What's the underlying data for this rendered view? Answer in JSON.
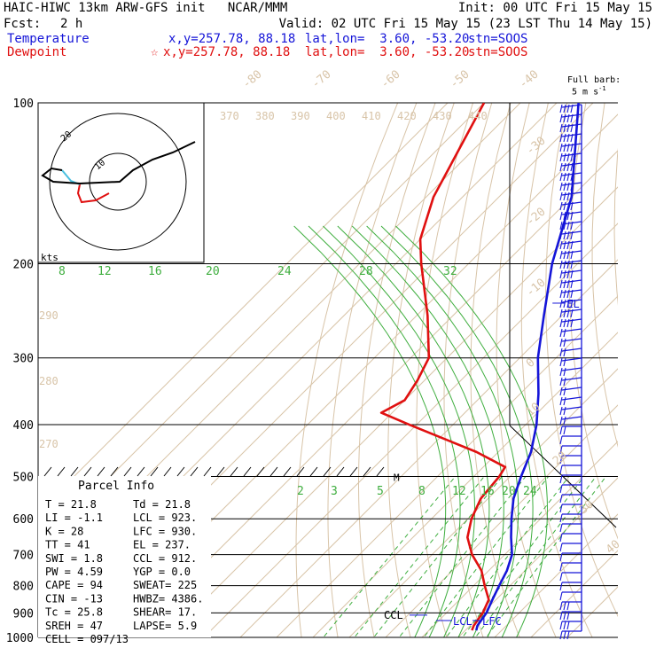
{
  "header": {
    "title": "HAIC-HIWC 13km ARW-GFS init   NCAR/MMM",
    "init": "Init: 00 UTC Fri 15 May 15",
    "fcst_label": "Fcst:",
    "fcst_value": "2 h",
    "valid": "Valid: 02 UTC Fri 15 May 15 (23 LST Thu 14 May 15)",
    "temperature_line": {
      "name": "Temperature",
      "xy": "x,y=257.78, 88.18",
      "latlon": "lat,lon=  3.60, -53.20",
      "stn": "stn=SOOS",
      "color": "#1515d8"
    },
    "dewpoint_line": {
      "name": "Dewpoint",
      "xy": "x,y=257.78, 88.18",
      "latlon": "lat,lon=  3.60, -53.20",
      "stn": "stn=SOOS",
      "color": "#e01010"
    }
  },
  "barb_legend": {
    "line1": "Full barb:",
    "line2": "5 m s",
    "sup": "-1"
  },
  "hodograph": {
    "units": "kts",
    "ring_labels": [
      "10",
      "20"
    ]
  },
  "parcel_info": {
    "title": "Parcel Info",
    "rows": [
      [
        "T  =    21.8",
        "Td =  21.8"
      ],
      [
        "LI =    -1.1",
        "LCL =  923."
      ],
      [
        "K  =      28",
        "LFC =  930."
      ],
      [
        "TT =      41",
        "EL  =  237."
      ],
      [
        "SWI =    1.8",
        "CCL =  912."
      ],
      [
        "PW =    4.59",
        "YGP =   0.0"
      ],
      [
        "CAPE =    94",
        "SWEAT=  225"
      ],
      [
        "CIN =    -13",
        "HWBZ= 4386."
      ],
      [
        "Tc =    25.8",
        "SHEAR=  17."
      ],
      [
        "SREH =    47",
        "LAPSE=  5.9"
      ],
      [
        "CELL = 097/13",
        ""
      ]
    ]
  },
  "level_labels": {
    "el": "EL",
    "ccl": "CCL",
    "lcl": "LCL",
    "lfc": "LFC",
    "m": "M"
  },
  "chart_data": {
    "type": "line",
    "title": "",
    "pressure_levels": [
      100,
      200,
      300,
      400,
      500,
      600,
      700,
      800,
      900,
      1000
    ],
    "isotherm_labels_top": [
      "-80",
      "-70",
      "-60",
      "-50",
      "-40"
    ],
    "isotherm_labels_right": [
      "-30",
      "-20",
      "-10",
      "0",
      "10",
      "20",
      "30",
      "40"
    ],
    "theta_labels": [
      "370",
      "380",
      "390",
      "400",
      "410",
      "420",
      "430",
      "440"
    ],
    "theta_labels_left": [
      "290",
      "280",
      "270"
    ],
    "moist_adiabat_labels": [
      "8",
      "12",
      "16",
      "20",
      "24",
      "28",
      "32"
    ],
    "mixing_ratio_labels": [
      "2",
      "3",
      "5",
      "8",
      "12",
      "16",
      "20",
      "24"
    ],
    "series": [
      {
        "name": "Temperature",
        "color": "#1515d8",
        "points": [
          [
            100,
            -94
          ],
          [
            150,
            -70
          ],
          [
            200,
            -57
          ],
          [
            250,
            -45
          ],
          [
            300,
            -35
          ],
          [
            350,
            -25
          ],
          [
            400,
            -17
          ],
          [
            450,
            -11
          ],
          [
            500,
            -7
          ],
          [
            550,
            -3
          ],
          [
            600,
            2
          ],
          [
            650,
            7
          ],
          [
            700,
            12
          ],
          [
            750,
            15
          ],
          [
            800,
            17
          ],
          [
            850,
            19
          ],
          [
            900,
            21
          ],
          [
            950,
            22
          ],
          [
            970,
            23
          ]
        ]
      },
      {
        "name": "Dewpoint",
        "color": "#e01010",
        "points": [
          [
            100,
            -120
          ],
          [
            150,
            -108
          ],
          [
            180,
            -100
          ],
          [
            200,
            -93
          ],
          [
            250,
            -77
          ],
          [
            300,
            -65
          ],
          [
            330,
            -62
          ],
          [
            360,
            -60
          ],
          [
            380,
            -63
          ],
          [
            400,
            -52
          ],
          [
            450,
            -26
          ],
          [
            480,
            -14
          ],
          [
            500,
            -13
          ],
          [
            550,
            -12
          ],
          [
            600,
            -9
          ],
          [
            650,
            -5
          ],
          [
            700,
            1
          ],
          [
            750,
            8
          ],
          [
            800,
            13
          ],
          [
            850,
            18
          ],
          [
            900,
            20
          ],
          [
            950,
            21
          ],
          [
            970,
            21.8
          ]
        ]
      }
    ]
  }
}
